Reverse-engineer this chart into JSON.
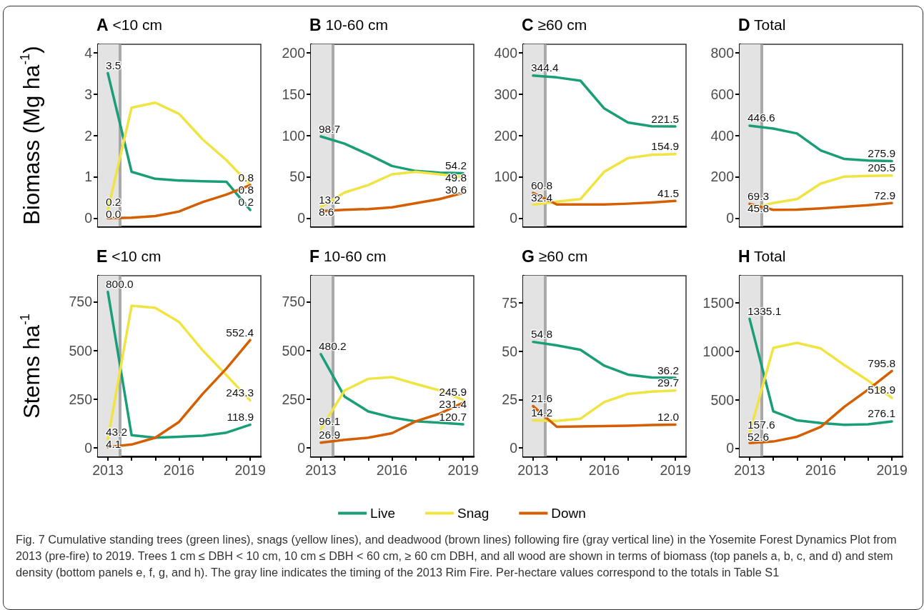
{
  "chart_data": [
    {
      "type": "line",
      "title": "A <10 cm",
      "ylabel": "Biomass (Mg ha$^{-1}$)",
      "x": [
        2013,
        2014,
        2015,
        2016,
        2017,
        2018,
        2019
      ],
      "xlim": [
        2012.58,
        2019.45
      ],
      "ylim": [
        -0.2,
        4.2
      ],
      "yticks": [
        0,
        1,
        2,
        3,
        4
      ],
      "tick_labels": "y",
      "marker": "none",
      "bands": [
        {
          "axis": "x",
          "from": 2012.58,
          "to": 2013.5,
          "color": "#e3e3e3"
        }
      ],
      "ref_lines": [
        {
          "axis": "x",
          "value": 2013.5,
          "color": "#a9a9a9"
        }
      ],
      "series": [
        {
          "color": "#1a9e77",
          "values": [
            3.5,
            1.12,
            0.95,
            0.91,
            0.89,
            0.88,
            0.2
          ],
          "value_labels": [
            "3.5",
            null,
            null,
            null,
            null,
            null,
            "0.2"
          ]
        },
        {
          "color": "#f0e442",
          "values": [
            0.2,
            2.67,
            2.79,
            2.52,
            1.9,
            1.4,
            0.8
          ],
          "value_labels": [
            "0.2",
            null,
            null,
            null,
            null,
            null,
            "0.8"
          ]
        },
        {
          "color": "#d55e00",
          "values": [
            0.0,
            0.01,
            0.05,
            0.16,
            0.39,
            0.57,
            0.8
          ],
          "value_labels": [
            "0.0",
            null,
            null,
            null,
            null,
            null,
            "0.8"
          ]
        }
      ]
    },
    {
      "type": "line",
      "title": "B 10-60 cm",
      "x": [
        2013,
        2014,
        2015,
        2016,
        2017,
        2018,
        2019
      ],
      "xlim": [
        2012.58,
        2019.45
      ],
      "ylim": [
        -10,
        210
      ],
      "yticks": [
        0,
        50,
        100,
        150,
        200
      ],
      "tick_labels": "y",
      "marker": "none",
      "bands": [
        {
          "axis": "x",
          "from": 2012.58,
          "to": 2013.5,
          "color": "#e3e3e3"
        }
      ],
      "ref_lines": [
        {
          "axis": "x",
          "value": 2013.5,
          "color": "#a9a9a9"
        }
      ],
      "series": [
        {
          "color": "#1a9e77",
          "values": [
            98.7,
            90,
            77,
            63,
            57,
            55,
            54.2
          ],
          "value_labels": [
            "98.7",
            null,
            null,
            null,
            null,
            null,
            "54.2"
          ]
        },
        {
          "color": "#f0e442",
          "values": [
            13.2,
            31,
            40,
            53,
            56,
            53,
            49.8
          ],
          "value_labels": [
            "13.2",
            null,
            null,
            null,
            null,
            null,
            "49.8"
          ]
        },
        {
          "color": "#d55e00",
          "values": [
            8.6,
            10,
            11,
            13,
            18,
            23,
            30.6
          ],
          "value_labels": [
            "8.6",
            null,
            null,
            null,
            null,
            null,
            "30.6"
          ]
        }
      ]
    },
    {
      "type": "line",
      "title": "C ≥60 cm",
      "x": [
        2013,
        2014,
        2015,
        2016,
        2017,
        2018,
        2019
      ],
      "xlim": [
        2012.58,
        2019.45
      ],
      "ylim": [
        -20,
        420
      ],
      "yticks": [
        0,
        100,
        200,
        300,
        400
      ],
      "tick_labels": "y",
      "marker": "none",
      "bands": [
        {
          "axis": "x",
          "from": 2012.58,
          "to": 2013.5,
          "color": "#e3e3e3"
        }
      ],
      "ref_lines": [
        {
          "axis": "x",
          "value": 2013.5,
          "color": "#a9a9a9"
        }
      ],
      "series": [
        {
          "color": "#1a9e77",
          "values": [
            344.4,
            340,
            332,
            265,
            231,
            222,
            221.5
          ],
          "value_labels": [
            "344.4",
            null,
            null,
            null,
            null,
            null,
            "221.5"
          ]
        },
        {
          "color": "#f0e442",
          "values": [
            32.4,
            40,
            46,
            112,
            145,
            153,
            154.9
          ],
          "value_labels": [
            "32.4",
            null,
            null,
            null,
            null,
            null,
            "154.9"
          ]
        },
        {
          "color": "#d55e00",
          "values": [
            60.8,
            33,
            33,
            33,
            35,
            38,
            41.5
          ],
          "value_labels": [
            "60.8",
            null,
            null,
            null,
            null,
            null,
            "41.5"
          ]
        }
      ]
    },
    {
      "type": "line",
      "title": "D Total",
      "x": [
        2013,
        2014,
        2015,
        2016,
        2017,
        2018,
        2019
      ],
      "xlim": [
        2012.58,
        2019.45
      ],
      "ylim": [
        -40,
        840
      ],
      "yticks": [
        0,
        200,
        400,
        600,
        800
      ],
      "tick_labels": "y",
      "marker": "none",
      "bands": [
        {
          "axis": "x",
          "from": 2012.58,
          "to": 2013.5,
          "color": "#e3e3e3"
        }
      ],
      "ref_lines": [
        {
          "axis": "x",
          "value": 2013.5,
          "color": "#a9a9a9"
        }
      ],
      "series": [
        {
          "color": "#1a9e77",
          "values": [
            446.6,
            433,
            409,
            327,
            286,
            278,
            275.9
          ],
          "value_labels": [
            "446.6",
            null,
            null,
            null,
            null,
            null,
            "275.9"
          ]
        },
        {
          "color": "#f0e442",
          "values": [
            45.8,
            73,
            92,
            167,
            201,
            204,
            205.5
          ],
          "value_labels": [
            "45.8",
            null,
            null,
            null,
            null,
            null,
            "205.5"
          ]
        },
        {
          "color": "#d55e00",
          "values": [
            69.3,
            40,
            41,
            47,
            55,
            63,
            72.9
          ],
          "value_labels": [
            "69.3",
            null,
            null,
            null,
            null,
            null,
            "72.9"
          ]
        }
      ]
    },
    {
      "type": "line",
      "title": "E <10 cm",
      "ylabel": "Stems ha$^{-1}$",
      "x": [
        2013,
        2014,
        2015,
        2016,
        2017,
        2018,
        2019
      ],
      "xlim": [
        2012.58,
        2019.45
      ],
      "ylim": [
        -44,
        883
      ],
      "yticks": [
        0,
        250,
        500,
        750
      ],
      "xticks": [
        2013,
        {
          "value": 2014,
          "label": null
        },
        {
          "value": 2015,
          "label": null
        },
        2016,
        {
          "value": 2017,
          "label": null
        },
        {
          "value": 2018,
          "label": null
        },
        2019
      ],
      "marker": "none",
      "bands": [
        {
          "axis": "x",
          "from": 2012.58,
          "to": 2013.5,
          "color": "#e3e3e3"
        }
      ],
      "ref_lines": [
        {
          "axis": "x",
          "value": 2013.5,
          "color": "#a9a9a9"
        }
      ],
      "series": [
        {
          "color": "#1a9e77",
          "values": [
            800.0,
            65,
            52,
            57,
            62,
            78,
            118.9
          ],
          "value_labels": [
            "800.0",
            null,
            null,
            null,
            null,
            null,
            "118.9"
          ]
        },
        {
          "color": "#f0e442",
          "values": [
            43.2,
            729,
            718,
            646,
            500,
            373,
            243.3
          ],
          "value_labels": [
            "43.2",
            null,
            null,
            null,
            null,
            null,
            "243.3"
          ]
        },
        {
          "color": "#d55e00",
          "values": [
            4.1,
            17,
            52,
            133,
            277,
            407,
            552.4
          ],
          "value_labels": [
            "4.1",
            null,
            null,
            null,
            null,
            null,
            "552.4"
          ]
        }
      ]
    },
    {
      "type": "line",
      "title": "F 10-60 cm",
      "x": [
        2013,
        2014,
        2015,
        2016,
        2017,
        2018,
        2019
      ],
      "xlim": [
        2012.58,
        2019.45
      ],
      "ylim": [
        -44,
        883
      ],
      "yticks": [
        0,
        250,
        500,
        750
      ],
      "xticks": [
        2013,
        {
          "value": 2014,
          "label": null
        },
        {
          "value": 2015,
          "label": null
        },
        2016,
        {
          "value": 2017,
          "label": null
        },
        {
          "value": 2018,
          "label": null
        },
        2019
      ],
      "marker": "none",
      "bands": [
        {
          "axis": "x",
          "from": 2012.58,
          "to": 2013.5,
          "color": "#e3e3e3"
        }
      ],
      "ref_lines": [
        {
          "axis": "x",
          "value": 2013.5,
          "color": "#a9a9a9"
        }
      ],
      "series": [
        {
          "color": "#1a9e77",
          "values": [
            480.2,
            263,
            187,
            156,
            136,
            129,
            120.7
          ],
          "value_labels": [
            "480.2",
            null,
            null,
            null,
            null,
            null,
            "120.7"
          ]
        },
        {
          "color": "#f0e442",
          "values": [
            96.1,
            294,
            354,
            363,
            328,
            295,
            245.9
          ],
          "value_labels": [
            "96.1",
            null,
            null,
            null,
            null,
            null,
            "245.9"
          ]
        },
        {
          "color": "#d55e00",
          "values": [
            26.9,
            41,
            52,
            75,
            136,
            175,
            231.4
          ],
          "value_labels": [
            "26.9",
            null,
            null,
            null,
            null,
            null,
            "231.4"
          ]
        }
      ]
    },
    {
      "type": "line",
      "title": "G ≥60 cm",
      "x": [
        2013,
        2014,
        2015,
        2016,
        2017,
        2018,
        2019
      ],
      "xlim": [
        2012.58,
        2019.45
      ],
      "ylim": [
        -4.4,
        89
      ],
      "yticks": [
        0,
        25,
        50,
        75
      ],
      "xticks": [
        2013,
        {
          "value": 2014,
          "label": null
        },
        {
          "value": 2015,
          "label": null
        },
        2016,
        {
          "value": 2017,
          "label": null
        },
        {
          "value": 2018,
          "label": null
        },
        2019
      ],
      "marker": "none",
      "bands": [
        {
          "axis": "x",
          "from": 2012.58,
          "to": 2013.5,
          "color": "#e3e3e3"
        }
      ],
      "ref_lines": [
        {
          "axis": "x",
          "value": 2013.5,
          "color": "#a9a9a9"
        }
      ],
      "series": [
        {
          "color": "#1a9e77",
          "values": [
            54.8,
            53,
            50.7,
            42.5,
            37.9,
            36.4,
            36.2
          ],
          "value_labels": [
            "54.8",
            null,
            null,
            null,
            null,
            null,
            "36.2"
          ]
        },
        {
          "color": "#f0e442",
          "values": [
            14.2,
            14,
            15.1,
            23.7,
            27.9,
            29.1,
            29.7
          ],
          "value_labels": [
            "14.2",
            null,
            null,
            null,
            null,
            null,
            "29.7"
          ]
        },
        {
          "color": "#d55e00",
          "values": [
            21.6,
            10.9,
            11.1,
            11.3,
            11.5,
            11.8,
            12.0
          ],
          "value_labels": [
            "21.6",
            null,
            null,
            null,
            null,
            null,
            "12.0"
          ]
        }
      ]
    },
    {
      "type": "line",
      "title": "H Total",
      "x": [
        2013,
        2014,
        2015,
        2016,
        2017,
        2018,
        2019
      ],
      "xlim": [
        2012.58,
        2019.45
      ],
      "ylim": [
        -86,
        1780
      ],
      "yticks": [
        0,
        500,
        1000,
        1500
      ],
      "xticks": [
        2013,
        {
          "value": 2014,
          "label": null
        },
        {
          "value": 2015,
          "label": null
        },
        2016,
        {
          "value": 2017,
          "label": null
        },
        {
          "value": 2018,
          "label": null
        },
        2019
      ],
      "marker": "none",
      "legend": "bottom",
      "bands": [
        {
          "axis": "x",
          "from": 2012.58,
          "to": 2013.5,
          "color": "#e3e3e3"
        }
      ],
      "ref_lines": [
        {
          "axis": "x",
          "value": 2013.5,
          "color": "#a9a9a9"
        }
      ],
      "annotations": [
        "Fig. 7 Cumulative standing trees (green lines), snags (yellow lines), and deadwood (brown lines) following fire (gray vertical line) in the Yosemite Forest Dynamics Plot from 2013 (pre-fire) to 2019. Trees 1 cm ≤ DBH < 10 cm, 10 cm ≤ DBH < 60 cm, ≥ 60 cm DBH, and all wood are shown in terms of biomass (top panels a, b, c, and d) and stem density (bottom panels e, f, g, and h). The gray line indicates the timing of the 2013 Rim Fire. Per-hectare values correspond to the totals in Table S1"
      ],
      "series": [
        {
          "name": "Live",
          "color": "#1a9e77",
          "values": [
            1335.1,
            379,
            286,
            259,
            240,
            246,
            276.1
          ],
          "value_labels": [
            "1335.1",
            null,
            null,
            null,
            null,
            null,
            "276.1"
          ]
        },
        {
          "name": "Snag",
          "color": "#f0e442",
          "values": [
            157.6,
            1035,
            1087,
            1029,
            856,
            696,
            518.9
          ],
          "value_labels": [
            "157.6",
            null,
            null,
            null,
            null,
            null,
            "518.9"
          ]
        },
        {
          "name": "Down",
          "color": "#d55e00",
          "values": [
            52.6,
            68,
            117,
            219,
            428,
            604,
            795.8
          ],
          "value_labels": [
            "52.6",
            null,
            null,
            null,
            null,
            null,
            "795.8"
          ]
        }
      ]
    }
  ]
}
